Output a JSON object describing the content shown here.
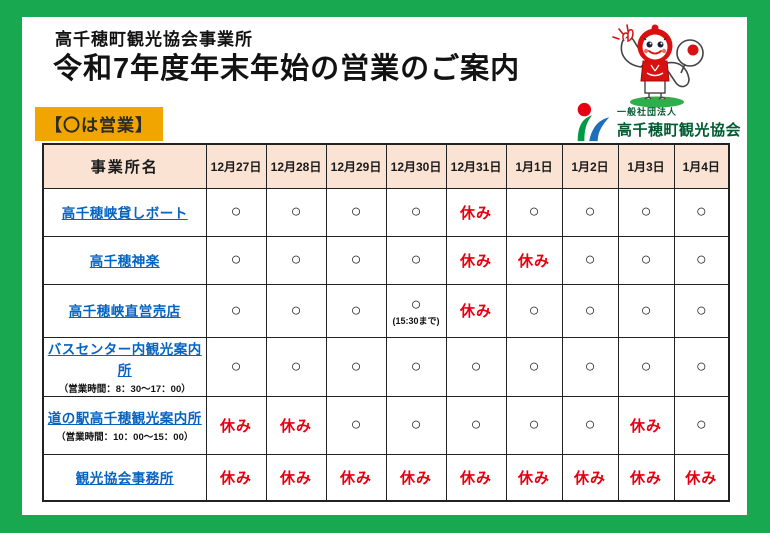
{
  "header": {
    "subtitle": "高千穂町観光協会事業所",
    "title": "令和7年度年末年始の営業のご案内",
    "badge_label": "【〇は営業】"
  },
  "logo": {
    "org_type": "一般社団法人",
    "org_name": "高千穂町観光協会"
  },
  "icons": {
    "mascot": "takachiho-mascot-character",
    "logo_mark": "tourism-association-logo-mark"
  },
  "colors": {
    "frame_green": "#17a850",
    "badge_amber": "#f0a500",
    "header_peach": "#fbe3d4",
    "closed_red": "#e60012",
    "link_blue": "#0563c1",
    "logo_dark_green": "#005a31",
    "mascot_red": "#d8100f",
    "shadow_green": "#2fae4a"
  },
  "table": {
    "name_header": "事業所名",
    "date_headers": [
      "12月27日",
      "12月28日",
      "12月29日",
      "12月30日",
      "12月31日",
      "1月1日",
      "1月2日",
      "1月3日",
      "1月4日"
    ],
    "open_mark": "○",
    "closed_mark": "休み",
    "rows": [
      {
        "name": "高千穂峡貸しボート",
        "note": "",
        "cells": [
          {
            "v": "○"
          },
          {
            "v": "○"
          },
          {
            "v": "○"
          },
          {
            "v": "○"
          },
          {
            "v": "休み"
          },
          {
            "v": "○"
          },
          {
            "v": "○"
          },
          {
            "v": "○"
          },
          {
            "v": "○"
          }
        ]
      },
      {
        "name": "高千穂神楽",
        "note": "",
        "cells": [
          {
            "v": "○"
          },
          {
            "v": "○"
          },
          {
            "v": "○"
          },
          {
            "v": "○"
          },
          {
            "v": "休み"
          },
          {
            "v": "休み"
          },
          {
            "v": "○"
          },
          {
            "v": "○"
          },
          {
            "v": "○"
          }
        ]
      },
      {
        "name": "高千穂峡直営売店",
        "note": "",
        "cells": [
          {
            "v": "○"
          },
          {
            "v": "○"
          },
          {
            "v": "○"
          },
          {
            "v": "○",
            "note": "(15:30まで)"
          },
          {
            "v": "休み"
          },
          {
            "v": "○"
          },
          {
            "v": "○"
          },
          {
            "v": "○"
          },
          {
            "v": "○"
          }
        ]
      },
      {
        "name": "バスセンター内観光案内所",
        "note": "（営業時間：8：30～17：00）",
        "cells": [
          {
            "v": "○"
          },
          {
            "v": "○"
          },
          {
            "v": "○"
          },
          {
            "v": "○"
          },
          {
            "v": "○"
          },
          {
            "v": "○"
          },
          {
            "v": "○"
          },
          {
            "v": "○"
          },
          {
            "v": "○"
          }
        ]
      },
      {
        "name": "道の駅高千穂観光案内所",
        "note": "（営業時間：10：00～15：00）",
        "cells": [
          {
            "v": "休み"
          },
          {
            "v": "休み"
          },
          {
            "v": "○"
          },
          {
            "v": "○"
          },
          {
            "v": "○"
          },
          {
            "v": "○"
          },
          {
            "v": "○"
          },
          {
            "v": "休み"
          },
          {
            "v": "○"
          }
        ]
      },
      {
        "name": "観光協会事務所",
        "note": "",
        "cells": [
          {
            "v": "休み"
          },
          {
            "v": "休み"
          },
          {
            "v": "休み"
          },
          {
            "v": "休み"
          },
          {
            "v": "休み"
          },
          {
            "v": "休み"
          },
          {
            "v": "休み"
          },
          {
            "v": "休み"
          },
          {
            "v": "休み"
          }
        ]
      }
    ]
  }
}
